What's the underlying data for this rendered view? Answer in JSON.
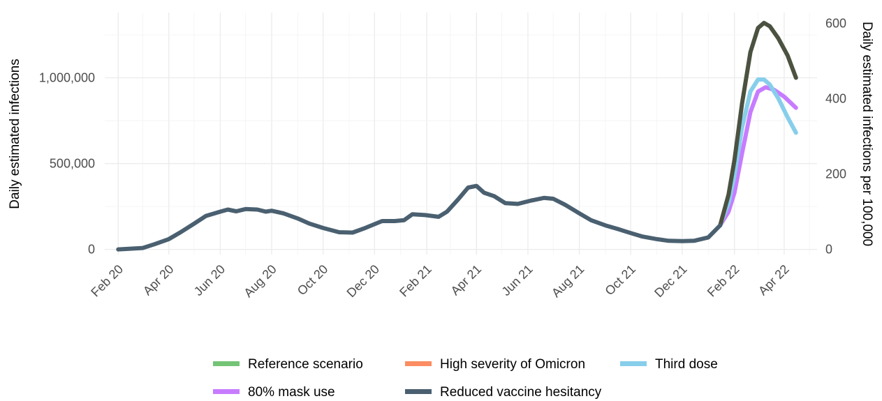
{
  "colors": {
    "reference": "#74c476",
    "high_severity": "#fc8d62",
    "third_dose": "#87ceeb",
    "mask": "#c77cff",
    "reduced_hesitancy": "#4a6070",
    "grid": "#ebebeb"
  },
  "chart_data": {
    "type": "line",
    "title": "",
    "ylabel": "Daily estimated infections",
    "ylabel_right": "Daily estimated infections per 100,000",
    "xlabel": "",
    "x_tick_labels": [
      "Feb 20",
      "Apr 20",
      "Jun 20",
      "Aug 20",
      "Oct 20",
      "Dec 20",
      "Feb 21",
      "Apr 21",
      "Jun 21",
      "Aug 21",
      "Oct 21",
      "Dec 21",
      "Feb 22",
      "Apr 22"
    ],
    "y_ticks": [
      0,
      500000,
      1000000
    ],
    "y_tick_labels": [
      "0",
      "500,000",
      "1,000,000"
    ],
    "ylim": [
      -30000,
      1380000
    ],
    "y_right_ticks": [
      0,
      200,
      400,
      600
    ],
    "y_right_tick_labels": [
      "0",
      "200",
      "400",
      "600"
    ],
    "y_right_per_100k_factor": 2195,
    "grid": true,
    "legend_position": "bottom",
    "legend": [
      {
        "name": "Reference scenario",
        "color_key": "reference"
      },
      {
        "name": "High severity of Omicron",
        "color_key": "high_severity"
      },
      {
        "name": "Third dose",
        "color_key": "third_dose"
      },
      {
        "name": "80% mask use",
        "color_key": "mask"
      },
      {
        "name": "Reduced vaccine hesitancy",
        "color_key": "reduced_hesitancy"
      }
    ],
    "shared_history": {
      "color_key": "reduced_hesitancy",
      "points": [
        [
          "2020-02-01",
          0
        ],
        [
          "2020-03-01",
          8000
        ],
        [
          "2020-03-15",
          30000
        ],
        [
          "2020-04-01",
          60000
        ],
        [
          "2020-04-15",
          100000
        ],
        [
          "2020-05-01",
          150000
        ],
        [
          "2020-05-15",
          195000
        ],
        [
          "2020-06-01",
          220000
        ],
        [
          "2020-06-10",
          232000
        ],
        [
          "2020-06-20",
          222000
        ],
        [
          "2020-07-01",
          235000
        ],
        [
          "2020-07-15",
          232000
        ],
        [
          "2020-07-25",
          220000
        ],
        [
          "2020-08-01",
          225000
        ],
        [
          "2020-08-15",
          210000
        ],
        [
          "2020-09-01",
          180000
        ],
        [
          "2020-09-15",
          150000
        ],
        [
          "2020-10-01",
          125000
        ],
        [
          "2020-10-20",
          100000
        ],
        [
          "2020-11-05",
          98000
        ],
        [
          "2020-11-20",
          125000
        ],
        [
          "2020-12-10",
          165000
        ],
        [
          "2020-12-25",
          165000
        ],
        [
          "2021-01-05",
          170000
        ],
        [
          "2021-01-15",
          205000
        ],
        [
          "2021-01-30",
          200000
        ],
        [
          "2021-02-15",
          190000
        ],
        [
          "2021-02-25",
          220000
        ],
        [
          "2021-03-10",
          290000
        ],
        [
          "2021-03-22",
          360000
        ],
        [
          "2021-04-01",
          370000
        ],
        [
          "2021-04-10",
          330000
        ],
        [
          "2021-04-22",
          310000
        ],
        [
          "2021-05-05",
          270000
        ],
        [
          "2021-05-20",
          265000
        ],
        [
          "2021-06-05",
          285000
        ],
        [
          "2021-06-20",
          300000
        ],
        [
          "2021-07-01",
          295000
        ],
        [
          "2021-07-15",
          260000
        ],
        [
          "2021-08-01",
          210000
        ],
        [
          "2021-08-15",
          170000
        ],
        [
          "2021-09-01",
          140000
        ],
        [
          "2021-09-15",
          120000
        ],
        [
          "2021-10-01",
          95000
        ],
        [
          "2021-10-15",
          75000
        ],
        [
          "2021-11-01",
          60000
        ],
        [
          "2021-11-15",
          50000
        ],
        [
          "2021-12-01",
          48000
        ],
        [
          "2021-12-15",
          50000
        ],
        [
          "2022-01-01",
          70000
        ],
        [
          "2022-01-15",
          140000
        ]
      ]
    },
    "series": [
      {
        "name": "Reduced vaccine hesitancy",
        "color_key": "reduced_hesitancy",
        "dark": true,
        "points": [
          [
            "2022-01-15",
            140000
          ],
          [
            "2022-01-25",
            320000
          ],
          [
            "2022-02-01",
            520000
          ],
          [
            "2022-02-10",
            850000
          ],
          [
            "2022-02-20",
            1150000
          ],
          [
            "2022-03-01",
            1290000
          ],
          [
            "2022-03-08",
            1320000
          ],
          [
            "2022-03-15",
            1300000
          ],
          [
            "2022-03-25",
            1230000
          ],
          [
            "2022-04-05",
            1130000
          ],
          [
            "2022-04-15",
            1000000
          ]
        ]
      },
      {
        "name": "Third dose",
        "color_key": "third_dose",
        "points": [
          [
            "2022-01-15",
            140000
          ],
          [
            "2022-01-25",
            270000
          ],
          [
            "2022-02-01",
            430000
          ],
          [
            "2022-02-10",
            710000
          ],
          [
            "2022-02-20",
            920000
          ],
          [
            "2022-03-01",
            990000
          ],
          [
            "2022-03-08",
            990000
          ],
          [
            "2022-03-15",
            960000
          ],
          [
            "2022-03-25",
            880000
          ],
          [
            "2022-04-05",
            770000
          ],
          [
            "2022-04-15",
            680000
          ]
        ]
      },
      {
        "name": "80% mask use",
        "color_key": "mask",
        "points": [
          [
            "2022-01-15",
            140000
          ],
          [
            "2022-01-25",
            220000
          ],
          [
            "2022-02-01",
            330000
          ],
          [
            "2022-02-10",
            560000
          ],
          [
            "2022-02-20",
            800000
          ],
          [
            "2022-03-01",
            920000
          ],
          [
            "2022-03-10",
            945000
          ],
          [
            "2022-03-20",
            930000
          ],
          [
            "2022-04-01",
            890000
          ],
          [
            "2022-04-15",
            825000
          ]
        ]
      }
    ]
  }
}
